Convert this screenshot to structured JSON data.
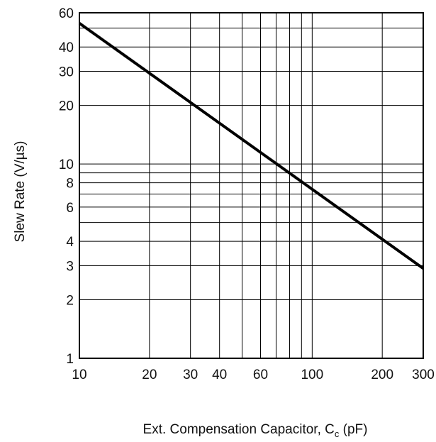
{
  "chart_data": {
    "type": "line",
    "title": "",
    "xlabel": {
      "main": "Ext. Compensation Capacitor, C",
      "subscript": "c",
      "unit": " (pF)"
    },
    "ylabel": "Slew Rate (V/µs)",
    "x_scale": "log",
    "y_scale": "log",
    "xlim": [
      10,
      300
    ],
    "ylim": [
      1,
      60
    ],
    "grid": true,
    "x_gridlines": [
      10,
      20,
      30,
      40,
      50,
      60,
      70,
      80,
      90,
      100,
      200,
      300
    ],
    "y_gridlines": [
      1,
      2,
      3,
      4,
      5,
      6,
      7,
      8,
      9,
      10,
      20,
      30,
      40,
      50,
      60
    ],
    "x_ticks": [
      {
        "value": 10,
        "label": "10"
      },
      {
        "value": 20,
        "label": "20"
      },
      {
        "value": 30,
        "label": "30"
      },
      {
        "value": 40,
        "label": "40"
      },
      {
        "value": 60,
        "label": "60"
      },
      {
        "value": 100,
        "label": "100"
      },
      {
        "value": 200,
        "label": "200"
      },
      {
        "value": 300,
        "label": "300"
      }
    ],
    "y_ticks": [
      {
        "value": 1,
        "label": "1"
      },
      {
        "value": 2,
        "label": "2"
      },
      {
        "value": 3,
        "label": "3"
      },
      {
        "value": 4,
        "label": "4"
      },
      {
        "value": 6,
        "label": "6"
      },
      {
        "value": 8,
        "label": "8"
      },
      {
        "value": 10,
        "label": "10"
      },
      {
        "value": 20,
        "label": "20"
      },
      {
        "value": 30,
        "label": "30"
      },
      {
        "value": 40,
        "label": "40"
      },
      {
        "value": 60,
        "label": "60"
      }
    ],
    "series": [
      {
        "x": [
          10,
          300
        ],
        "y": [
          53,
          2.9
        ]
      }
    ]
  }
}
